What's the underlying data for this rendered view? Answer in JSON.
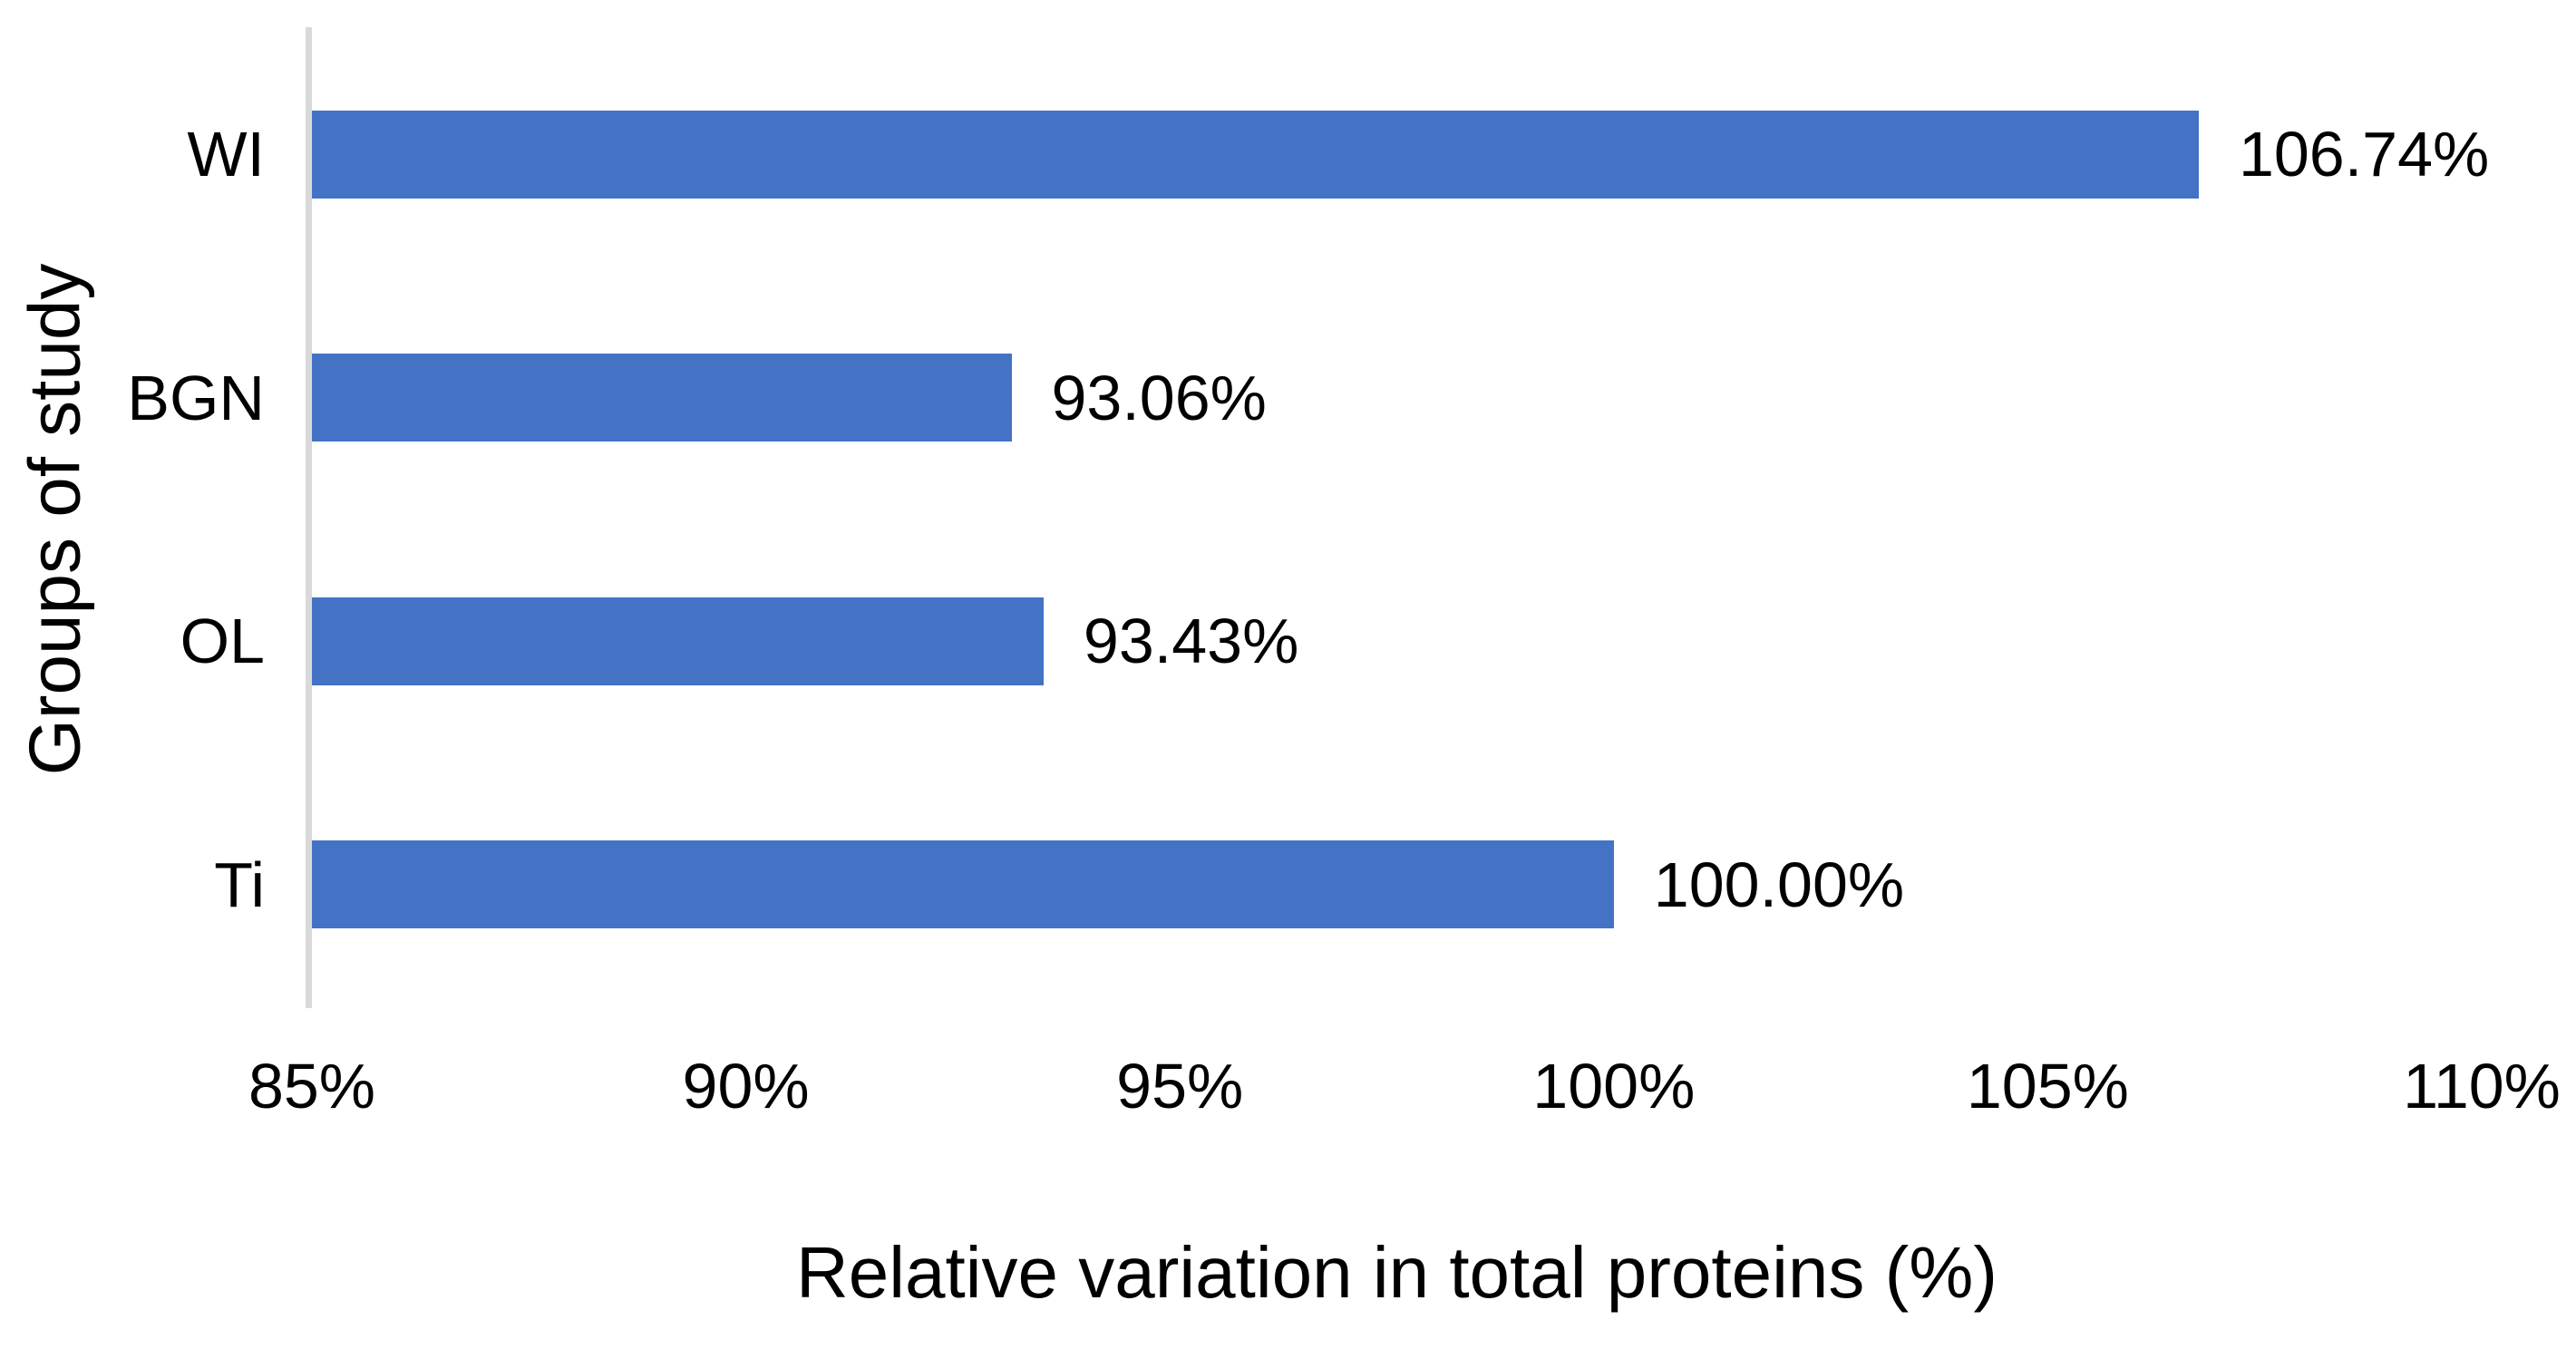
{
  "chart_data": {
    "type": "bar",
    "orientation": "horizontal",
    "title": "",
    "categories": [
      "WI",
      "BGN",
      "OL",
      "Ti"
    ],
    "values": [
      106.74,
      93.06,
      93.43,
      100.0
    ],
    "data_labels": [
      "106.74%",
      "93.06%",
      "93.43%",
      "100.00%"
    ],
    "xlabel": "Relative variation in total proteins (%)",
    "ylabel": "Groups of study",
    "xlim": [
      85,
      110
    ],
    "x_tick_values": [
      85,
      90,
      95,
      100,
      105,
      110
    ],
    "x_tick_labels": [
      "85%",
      "90%",
      "95%",
      "100%",
      "105%",
      "110%"
    ],
    "grid": false,
    "legend_position": "none",
    "bar_color": "#4472C4",
    "axis_line_color": "#D9D9D9",
    "text_color": "#000000"
  }
}
